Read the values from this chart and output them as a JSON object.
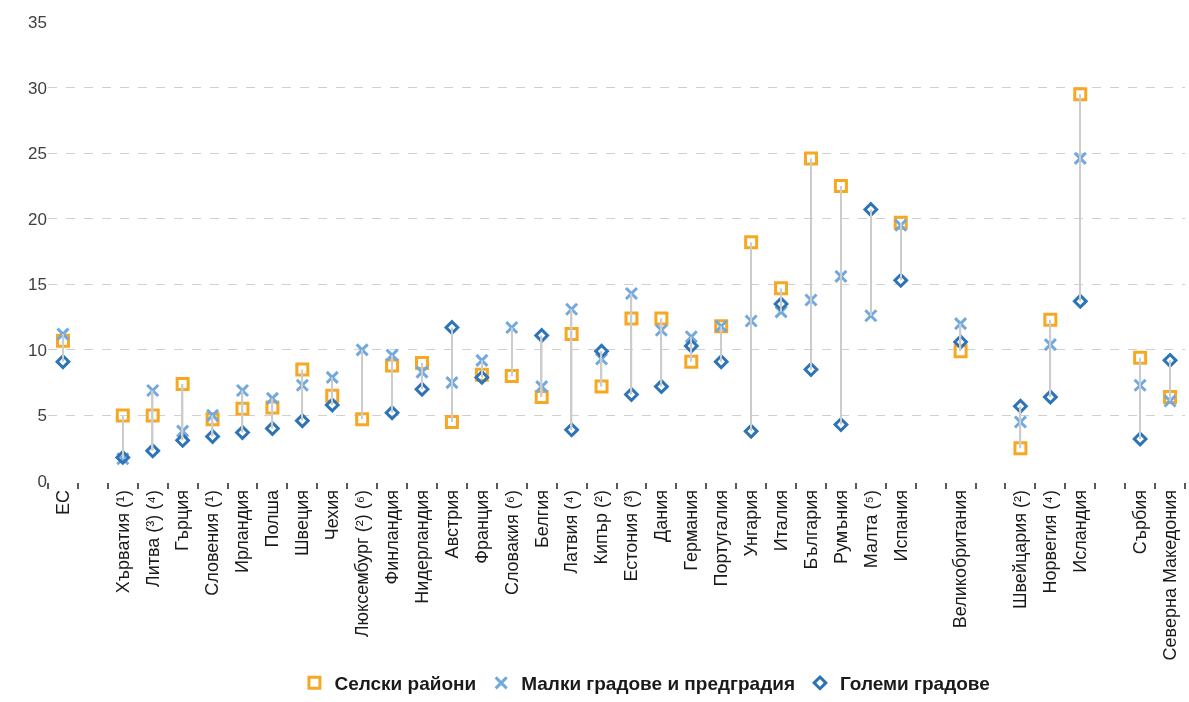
{
  "chart_data": {
    "type": "scatter",
    "categories": [
      "ЕС",
      null,
      "Хърватия (¹)",
      "Литва (³) (⁴)",
      "Гърция",
      "Словения (¹)",
      "Ирландия",
      "Полша",
      "Швеция",
      "Чехия",
      "Люксембург (²) (⁶)",
      "Финландия",
      "Нидерландия",
      "Австрия",
      "Франция",
      "Словакия (⁶)",
      "Белгия",
      "Латвия (⁴)",
      "Кипър (²)",
      "Естония (³)",
      "Дания",
      "Германия",
      "Португалия",
      "Унгария",
      "Италия",
      "България",
      "Румъния",
      "Малта (⁵)",
      "Испания",
      null,
      "Великобритания",
      null,
      "Швейцария (²)",
      "Норвегия (⁴)",
      "Исландия",
      null,
      "Сърбия",
      "Северна Македония"
    ],
    "series": [
      {
        "type": "bar",
        "color": "#cccccc",
        "base": [
          9.1,
          null,
          1.7,
          2.3,
          3.1,
          3.4,
          3.7,
          4.0,
          4.6,
          5.8,
          4.7,
          5.2,
          7.0,
          4.5,
          7.9,
          8.0,
          6.4,
          3.9,
          7.2,
          6.6,
          7.2,
          9.1,
          9.1,
          3.8,
          12.9,
          8.5,
          4.3,
          12.6,
          15.3,
          null,
          9.9,
          null,
          2.5,
          6.4,
          13.7,
          null,
          3.2,
          6.1
        ],
        "values": [
          2.1,
          null,
          3.3,
          4.6,
          4.3,
          1.6,
          3.2,
          2.3,
          3.9,
          2.1,
          5.3,
          4.4,
          2.0,
          7.2,
          1.3,
          3.7,
          4.7,
          9.2,
          2.7,
          7.7,
          5.2,
          1.9,
          2.7,
          14.4,
          1.8,
          16.1,
          18.2,
          8.1,
          4.4,
          null,
          2.1,
          null,
          3.2,
          5.9,
          15.8,
          null,
          6.2,
          3.1
        ]
      },
      {
        "name": "Селски райони",
        "color": "#f7a823",
        "marker": "square",
        "values": [
          10.7,
          null,
          5.0,
          5.0,
          7.4,
          4.7,
          5.5,
          5.6,
          8.5,
          6.5,
          4.7,
          8.8,
          9.0,
          4.5,
          8.1,
          8.0,
          6.4,
          11.2,
          7.2,
          12.4,
          12.4,
          9.1,
          11.8,
          18.2,
          14.7,
          24.6,
          22.5,
          null,
          19.7,
          null,
          9.9,
          null,
          2.5,
          12.3,
          29.5,
          null,
          9.4,
          6.4
        ]
      },
      {
        "name": "Малки градове и предградия",
        "color": "#72a9de",
        "marker": "cross",
        "values": [
          11.2,
          null,
          1.7,
          6.9,
          3.8,
          5.0,
          6.9,
          6.3,
          7.3,
          7.9,
          10.0,
          9.6,
          8.3,
          7.5,
          9.2,
          11.7,
          7.2,
          13.1,
          9.3,
          14.3,
          11.5,
          11.0,
          11.8,
          12.2,
          12.9,
          13.8,
          15.6,
          12.6,
          19.5,
          null,
          12.0,
          null,
          4.5,
          10.4,
          24.6,
          null,
          7.3,
          6.1
        ]
      },
      {
        "name": "Големи градове",
        "color": "#2d74b7",
        "marker": "diamond",
        "values": [
          9.1,
          null,
          1.8,
          2.3,
          3.1,
          3.4,
          3.7,
          4.0,
          4.6,
          5.8,
          null,
          5.2,
          7.0,
          11.7,
          7.9,
          null,
          11.1,
          3.9,
          9.9,
          6.6,
          7.2,
          10.3,
          9.1,
          3.8,
          13.5,
          8.5,
          4.3,
          20.7,
          15.3,
          null,
          10.6,
          null,
          5.7,
          6.4,
          13.7,
          null,
          3.2,
          9.2
        ]
      }
    ],
    "ylim": [
      0,
      35
    ],
    "yticks": [
      0,
      5,
      10,
      15,
      20,
      25,
      30,
      35
    ],
    "grid": "y",
    "legend": "bottom"
  }
}
